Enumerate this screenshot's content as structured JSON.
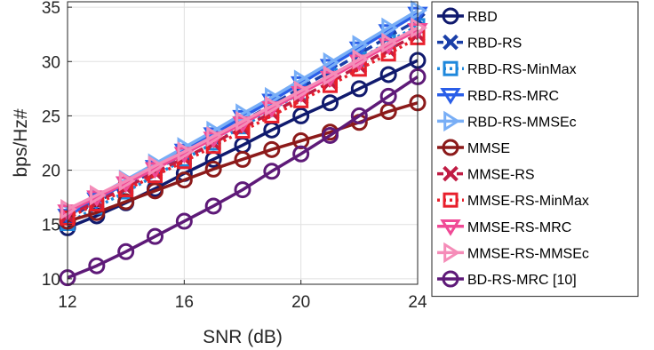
{
  "chart_data": {
    "type": "line",
    "title": "",
    "xlabel": "SNR (dB)",
    "ylabel": "bps/Hz#",
    "xlim": [
      12,
      24
    ],
    "ylim": [
      9.5,
      35.5
    ],
    "xticks": [
      12,
      16,
      20,
      24
    ],
    "yticks": [
      10,
      15,
      20,
      25,
      30,
      35
    ],
    "grid": true,
    "legend_position": "outside-right",
    "x": [
      12,
      13,
      14,
      15,
      16,
      17,
      18,
      19,
      20,
      21,
      22,
      23,
      24
    ],
    "series": [
      {
        "name": "RBD",
        "color": "#101a6e",
        "marker": "circle",
        "dash": "solid",
        "values": [
          14.7,
          15.8,
          17.0,
          18.3,
          19.7,
          21.0,
          22.3,
          23.7,
          25.0,
          26.2,
          27.5,
          28.8,
          30.1
        ]
      },
      {
        "name": "RBD-RS",
        "color": "#1a3fa8",
        "marker": "x",
        "dash": "dashed",
        "values": [
          15.5,
          17.1,
          18.5,
          20.0,
          21.5,
          23.0,
          24.5,
          26.0,
          27.6,
          29.1,
          30.7,
          32.3,
          33.8
        ]
      },
      {
        "name": "RBD-RS-MinMax",
        "color": "#1f88dc",
        "marker": "square",
        "dash": "dotted",
        "values": [
          15.1,
          16.6,
          18.0,
          19.5,
          21.0,
          22.5,
          24.0,
          25.6,
          27.1,
          28.7,
          30.2,
          31.8,
          33.3
        ]
      },
      {
        "name": "RBD-RS-MRC",
        "color": "#2a5ee8",
        "marker": "triangle-down",
        "dash": "solid",
        "values": [
          15.8,
          17.3,
          18.8,
          20.3,
          21.8,
          23.3,
          24.9,
          26.4,
          28.0,
          29.6,
          31.2,
          32.8,
          34.4
        ]
      },
      {
        "name": "RBD-RS-MMSEc",
        "color": "#78aef6",
        "marker": "triangle-right",
        "dash": "solid",
        "values": [
          16.1,
          17.6,
          19.1,
          20.6,
          22.1,
          23.6,
          25.2,
          26.7,
          28.3,
          29.9,
          31.5,
          33.1,
          34.7
        ]
      },
      {
        "name": "MMSE",
        "color": "#8c1a1a",
        "marker": "circle",
        "dash": "solid",
        "values": [
          15.3,
          16.1,
          17.1,
          18.1,
          19.1,
          20.1,
          21.0,
          21.9,
          22.7,
          23.5,
          24.4,
          25.4,
          26.2
        ]
      },
      {
        "name": "MMSE-RS",
        "color": "#c01c44",
        "marker": "x",
        "dash": "dashed",
        "values": [
          15.8,
          17.1,
          18.4,
          19.8,
          21.1,
          22.5,
          23.9,
          25.3,
          26.7,
          28.1,
          29.6,
          31.1,
          32.5
        ]
      },
      {
        "name": "MMSE-RS-MinMax",
        "color": "#e8202c",
        "marker": "square",
        "dash": "dotted",
        "values": [
          15.6,
          16.9,
          18.2,
          19.5,
          20.8,
          22.2,
          23.6,
          25.0,
          26.4,
          27.8,
          29.3,
          30.7,
          32.2
        ]
      },
      {
        "name": "MMSE-RS-MRC",
        "color": "#f04a96",
        "marker": "triangle-down",
        "dash": "solid",
        "values": [
          16.2,
          17.5,
          18.8,
          20.1,
          21.5,
          22.9,
          24.3,
          25.7,
          27.1,
          28.5,
          30.0,
          31.5,
          32.9
        ]
      },
      {
        "name": "MMSE-RS-MMSEc",
        "color": "#f58cb8",
        "marker": "triangle-right",
        "dash": "solid",
        "values": [
          16.4,
          17.7,
          19.0,
          20.4,
          21.7,
          23.1,
          24.5,
          25.9,
          27.3,
          28.7,
          30.2,
          31.7,
          33.1
        ]
      },
      {
        "name": "BD-RS-MRC [10]",
        "color": "#5e1a78",
        "marker": "circle",
        "dash": "solid",
        "values": [
          10.1,
          11.2,
          12.5,
          13.9,
          15.3,
          16.7,
          18.2,
          19.9,
          21.5,
          23.2,
          25.0,
          26.8,
          28.6
        ]
      }
    ]
  }
}
